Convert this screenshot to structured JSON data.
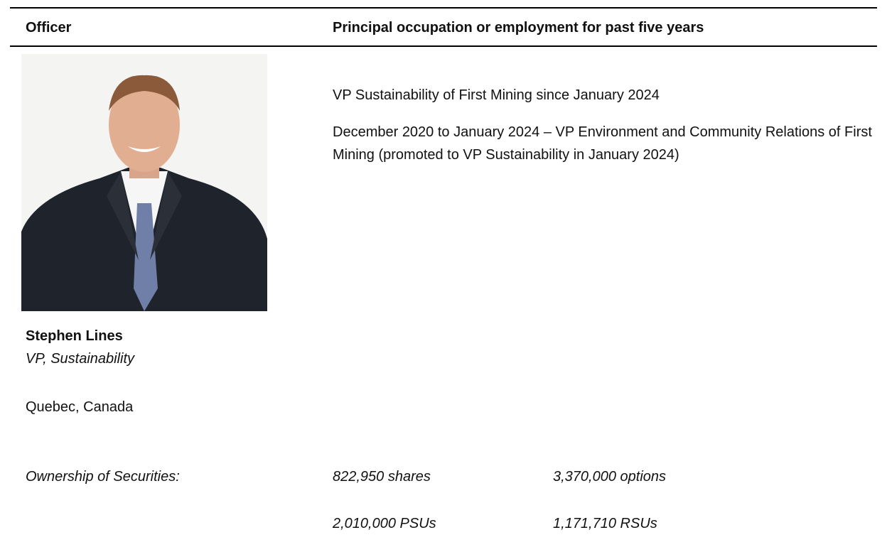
{
  "table": {
    "header": [
      "Officer",
      "Principal occupation or employment for past five years"
    ],
    "officer": {
      "name": "Stephen Lines",
      "title": "VP, Sustainability",
      "location": "Quebec, Canada"
    },
    "occupation": [
      "VP Sustainability of First Mining since January 2024",
      "December 2020 to January 2024 – VP Environment and Community Relations of First Mining (promoted to VP Sustainability in January 2024)"
    ],
    "ownership": {
      "label": "Ownership of Securities:",
      "items": [
        [
          "822,950 shares",
          "3,370,000 options"
        ],
        [
          "2,010,000 PSUs",
          "1,171,710 RSUs"
        ]
      ]
    }
  }
}
